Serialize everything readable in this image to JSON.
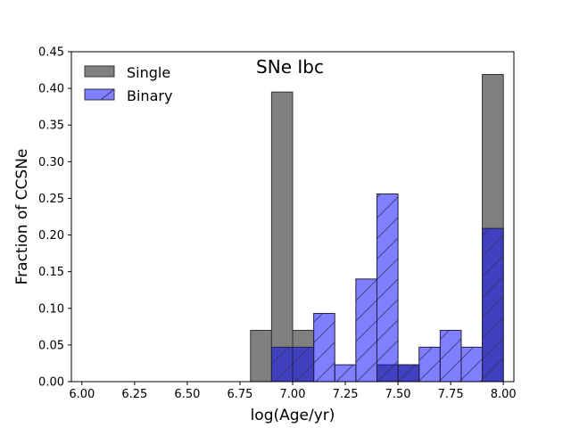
{
  "chart_data": {
    "type": "bar",
    "title": "SNe Ibc",
    "xlabel": "log(Age/yr)",
    "ylabel": "Fraction of CCSNe",
    "xlim": [
      5.95,
      8.05
    ],
    "ylim": [
      0.0,
      0.45
    ],
    "bin_width": 0.1,
    "xticks": [
      6.0,
      6.25,
      6.5,
      6.75,
      7.0,
      7.25,
      7.5,
      7.75,
      8.0
    ],
    "xtick_labels": [
      "6.00",
      "6.25",
      "6.50",
      "6.75",
      "7.00",
      "7.25",
      "7.50",
      "7.75",
      "8.00"
    ],
    "yticks": [
      0.0,
      0.05,
      0.1,
      0.15,
      0.2,
      0.25,
      0.3,
      0.35,
      0.4,
      0.45
    ],
    "ytick_labels": [
      "0.00",
      "0.05",
      "0.10",
      "0.15",
      "0.20",
      "0.25",
      "0.30",
      "0.35",
      "0.40",
      "0.45"
    ],
    "legend_position": "top-left",
    "series": [
      {
        "name": "Single",
        "color": "#808080",
        "hatch": "none",
        "bins": [
          {
            "left": 6.8,
            "value": 0.07
          },
          {
            "left": 6.9,
            "value": 0.395
          },
          {
            "left": 7.0,
            "value": 0.07
          },
          {
            "left": 7.1,
            "value": 0.0
          },
          {
            "left": 7.2,
            "value": 0.0
          },
          {
            "left": 7.3,
            "value": 0.0
          },
          {
            "left": 7.4,
            "value": 0.023
          },
          {
            "left": 7.5,
            "value": 0.023
          },
          {
            "left": 7.6,
            "value": 0.0
          },
          {
            "left": 7.7,
            "value": 0.0
          },
          {
            "left": 7.8,
            "value": 0.0
          },
          {
            "left": 7.9,
            "value": 0.419
          }
        ]
      },
      {
        "name": "Binary",
        "color": "#7f7fff",
        "hatch": "diagonal",
        "bins": [
          {
            "left": 6.9,
            "value": 0.047
          },
          {
            "left": 7.0,
            "value": 0.047
          },
          {
            "left": 7.1,
            "value": 0.093
          },
          {
            "left": 7.2,
            "value": 0.023
          },
          {
            "left": 7.3,
            "value": 0.14
          },
          {
            "left": 7.4,
            "value": 0.256
          },
          {
            "left": 7.5,
            "value": 0.023
          },
          {
            "left": 7.6,
            "value": 0.047
          },
          {
            "left": 7.7,
            "value": 0.07
          },
          {
            "left": 7.8,
            "value": 0.047
          },
          {
            "left": 7.9,
            "value": 0.209
          }
        ]
      }
    ]
  }
}
